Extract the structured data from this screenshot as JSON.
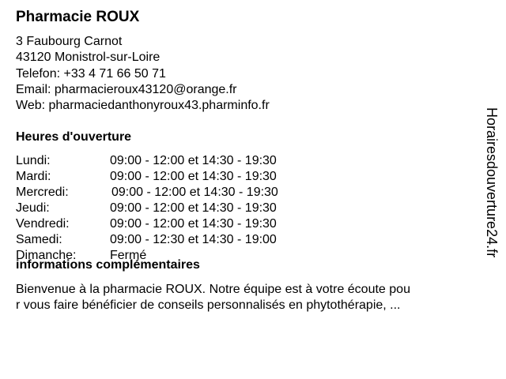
{
  "name": "Pharmacie ROUX",
  "address": [
    "3 Faubourg Carnot",
    "43120 Monistrol-sur-Loire"
  ],
  "phone": "Telefon: +33 4 71 66 50 71",
  "email": "Email: pharmacieroux43120@orange.fr",
  "web": "Web: pharmaciedanthonyroux43.pharminfo.fr",
  "hours_heading": "Heures d'ouverture",
  "hours": [
    {
      "day": "Lundi:",
      "time": "09:00 - 12:00 et 14:30 - 19:30"
    },
    {
      "day": "Mardi:",
      "time": "09:00 - 12:00 et 14:30 - 19:30"
    },
    {
      "day": "Mercredi:",
      "time": "09:00 - 12:00 et 14:30 - 19:30"
    },
    {
      "day": "Jeudi:",
      "time": "09:00 - 12:00 et 14:30 - 19:30"
    },
    {
      "day": "Vendredi:",
      "time": "09:00 - 12:00 et 14:30 - 19:30"
    },
    {
      "day": "Samedi:",
      "time": "09:00 - 12:30 et 14:30 - 19:00"
    },
    {
      "day": "Dimanche:",
      "time": "Fermé"
    }
  ],
  "info_heading": "informations complémentaires",
  "info_lines": [
    "Bienvenue à la pharmacie ROUX. Notre équipe est à votre écoute pou",
    "r vous faire bénéficier de conseils personnalisés en phytothérapie, ..."
  ],
  "watermark": "Horairesdouverture24.fr"
}
